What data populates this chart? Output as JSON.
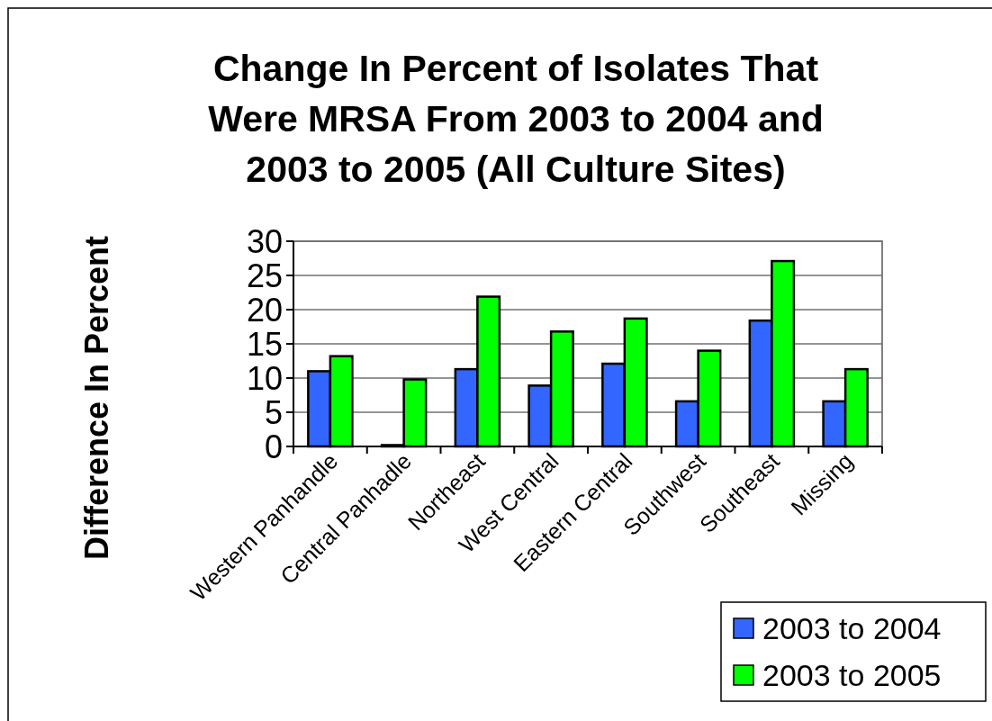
{
  "chart_data": {
    "type": "bar",
    "title": "Change In Percent of Isolates That Were MRSA From 2003 to 2004 and 2003 to 2005 (All Culture Sites)",
    "ylabel": "Difference In Percent",
    "categories": [
      "Western Panhandle",
      "Central Panhadle",
      "Northeast",
      "West Central",
      "Eastern Central",
      "Southwest",
      "Southeast",
      "Missing"
    ],
    "series": [
      {
        "name": "2003 to 2004",
        "color": "#3366ff",
        "values": [
          11.0,
          0.2,
          11.3,
          8.9,
          12.1,
          6.6,
          18.4,
          6.6
        ]
      },
      {
        "name": "2003 to 2005",
        "color": "#00ff00",
        "values": [
          13.2,
          9.8,
          21.9,
          16.8,
          18.7,
          14.0,
          27.1,
          11.3
        ]
      }
    ],
    "ylim": [
      0,
      30
    ],
    "yticks": [
      0,
      5,
      10,
      15,
      20,
      25,
      30
    ],
    "grid": "y",
    "legend": "bottom right"
  }
}
